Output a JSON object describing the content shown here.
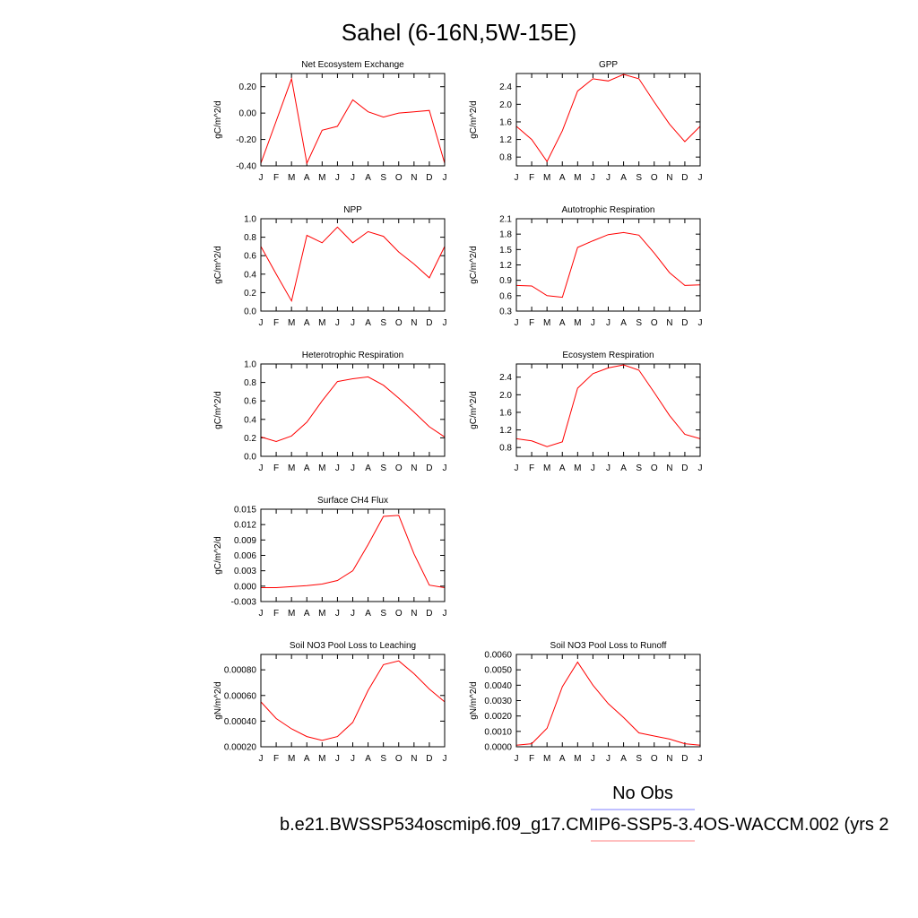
{
  "title": "Sahel (6-16N,5W-15E)",
  "legend": {
    "obs_label": "No Obs",
    "case_label": "b.e21.BWSSP534oscmip6.f09_g17.CMIP6-SSP5-3.4OS-WACCM.002 (yrs 2",
    "obs_color": "#8080ff",
    "case_color": "#ff8080"
  },
  "line_color": "#ff0000",
  "chart_data": [
    {
      "type": "line",
      "title": "Net Ecosystem Exchange",
      "ylabel": "gC/m^2/d",
      "categories": [
        "J",
        "F",
        "M",
        "A",
        "M",
        "J",
        "J",
        "A",
        "S",
        "O",
        "N",
        "D",
        "J"
      ],
      "ylim": [
        -0.4,
        0.3
      ],
      "yticks": [
        -0.4,
        -0.2,
        0.0,
        0.2
      ],
      "ytick_labels": [
        "-0.40",
        "-0.20",
        "0.00",
        "0.20"
      ],
      "values": [
        -0.38,
        -0.06,
        0.26,
        -0.38,
        -0.13,
        -0.1,
        0.1,
        0.01,
        -0.03,
        0.0,
        0.01,
        0.02,
        -0.38
      ]
    },
    {
      "type": "line",
      "title": "GPP",
      "ylabel": "gC/m^2/d",
      "categories": [
        "J",
        "F",
        "M",
        "A",
        "M",
        "J",
        "J",
        "A",
        "S",
        "O",
        "N",
        "D",
        "J"
      ],
      "ylim": [
        0.6,
        2.7
      ],
      "yticks": [
        0.8,
        1.2,
        1.6,
        2.0,
        2.4
      ],
      "ytick_labels": [
        "0.8",
        "1.2",
        "1.6",
        "2.0",
        "2.4"
      ],
      "values": [
        1.5,
        1.2,
        0.7,
        1.4,
        2.3,
        2.58,
        2.53,
        2.68,
        2.58,
        2.05,
        1.55,
        1.15,
        1.5
      ]
    },
    {
      "type": "line",
      "title": "NPP",
      "ylabel": "gC/m^2/d",
      "categories": [
        "J",
        "F",
        "M",
        "A",
        "M",
        "J",
        "J",
        "A",
        "S",
        "O",
        "N",
        "D",
        "J"
      ],
      "ylim": [
        0.0,
        1.0
      ],
      "yticks": [
        0.0,
        0.2,
        0.4,
        0.6,
        0.8,
        1.0
      ],
      "ytick_labels": [
        "0.0",
        "0.2",
        "0.4",
        "0.6",
        "0.8",
        "1.0"
      ],
      "values": [
        0.7,
        0.4,
        0.11,
        0.82,
        0.74,
        0.91,
        0.74,
        0.86,
        0.81,
        0.64,
        0.51,
        0.36,
        0.7
      ]
    },
    {
      "type": "line",
      "title": "Autotrophic Respiration",
      "ylabel": "gC/m^2/d",
      "categories": [
        "J",
        "F",
        "M",
        "A",
        "M",
        "J",
        "J",
        "A",
        "S",
        "O",
        "N",
        "D",
        "J"
      ],
      "ylim": [
        0.3,
        2.1
      ],
      "yticks": [
        0.3,
        0.6,
        0.9,
        1.2,
        1.5,
        1.8,
        2.1
      ],
      "ytick_labels": [
        "0.3",
        "0.6",
        "0.9",
        "1.2",
        "1.5",
        "1.8",
        "2.1"
      ],
      "values": [
        0.8,
        0.79,
        0.6,
        0.57,
        1.54,
        1.67,
        1.79,
        1.83,
        1.78,
        1.43,
        1.05,
        0.8,
        0.81
      ]
    },
    {
      "type": "line",
      "title": "Heterotrophic Respiration",
      "ylabel": "gC/m^2/d",
      "categories": [
        "J",
        "F",
        "M",
        "A",
        "M",
        "J",
        "J",
        "A",
        "S",
        "O",
        "N",
        "D",
        "J"
      ],
      "ylim": [
        0.0,
        1.0
      ],
      "yticks": [
        0.0,
        0.2,
        0.4,
        0.6,
        0.8,
        1.0
      ],
      "ytick_labels": [
        "0.0",
        "0.2",
        "0.4",
        "0.6",
        "0.8",
        "1.0"
      ],
      "values": [
        0.21,
        0.16,
        0.22,
        0.37,
        0.6,
        0.81,
        0.84,
        0.86,
        0.77,
        0.63,
        0.48,
        0.32,
        0.21
      ]
    },
    {
      "type": "line",
      "title": "Ecosystem Respiration",
      "ylabel": "gC/m^2/d",
      "categories": [
        "J",
        "F",
        "M",
        "A",
        "M",
        "J",
        "J",
        "A",
        "S",
        "O",
        "N",
        "D",
        "J"
      ],
      "ylim": [
        0.6,
        2.7
      ],
      "yticks": [
        0.8,
        1.2,
        1.6,
        2.0,
        2.4
      ],
      "ytick_labels": [
        "0.8",
        "1.2",
        "1.6",
        "2.0",
        "2.4"
      ],
      "values": [
        1.0,
        0.95,
        0.82,
        0.93,
        2.15,
        2.48,
        2.61,
        2.68,
        2.56,
        2.05,
        1.53,
        1.1,
        1.0
      ]
    },
    {
      "type": "line",
      "title": "Surface CH4 Flux",
      "ylabel": "gC/m^2/d",
      "categories": [
        "J",
        "F",
        "M",
        "A",
        "M",
        "J",
        "J",
        "A",
        "S",
        "O",
        "N",
        "D",
        "J"
      ],
      "ylim": [
        -0.003,
        0.015
      ],
      "yticks": [
        -0.003,
        0.0,
        0.003,
        0.006,
        0.009,
        0.012,
        0.015
      ],
      "ytick_labels": [
        "-0.003",
        "0.000",
        "0.003",
        "0.006",
        "0.009",
        "0.012",
        "0.015"
      ],
      "values": [
        -0.0003,
        -0.0003,
        -0.0001,
        0.0001,
        0.0004,
        0.0011,
        0.003,
        0.0081,
        0.0136,
        0.0138,
        0.0063,
        0.0002,
        -0.0003
      ]
    },
    {
      "type": "line",
      "title": "Soil NO3 Pool Loss to Leaching",
      "ylabel": "gN/m^2/d",
      "categories": [
        "J",
        "F",
        "M",
        "A",
        "M",
        "J",
        "J",
        "A",
        "S",
        "O",
        "N",
        "D",
        "J"
      ],
      "ylim": [
        0.0002,
        0.00092
      ],
      "yticks": [
        0.0002,
        0.0004,
        0.0006,
        0.0008
      ],
      "ytick_labels": [
        "0.00020",
        "0.00040",
        "0.00060",
        "0.00080"
      ],
      "values": [
        0.00055,
        0.00042,
        0.00034,
        0.00028,
        0.00025,
        0.00028,
        0.00039,
        0.00064,
        0.00084,
        0.00087,
        0.00077,
        0.00065,
        0.00055
      ]
    },
    {
      "type": "line",
      "title": "Soil NO3 Pool Loss to Runoff",
      "ylabel": "gN/m^2/d",
      "categories": [
        "J",
        "F",
        "M",
        "A",
        "M",
        "J",
        "J",
        "A",
        "S",
        "O",
        "N",
        "D",
        "J"
      ],
      "ylim": [
        0.0,
        0.006
      ],
      "yticks": [
        0.0,
        0.001,
        0.002,
        0.003,
        0.004,
        0.005,
        0.006
      ],
      "ytick_labels": [
        "0.0000",
        "0.0010",
        "0.0020",
        "0.0030",
        "0.0040",
        "0.0050",
        "0.0060"
      ],
      "values": [
        0.0001,
        0.0002,
        0.0012,
        0.0039,
        0.0055,
        0.004,
        0.0028,
        0.0019,
        0.0009,
        0.0007,
        0.0005,
        0.0002,
        0.0001
      ]
    }
  ]
}
